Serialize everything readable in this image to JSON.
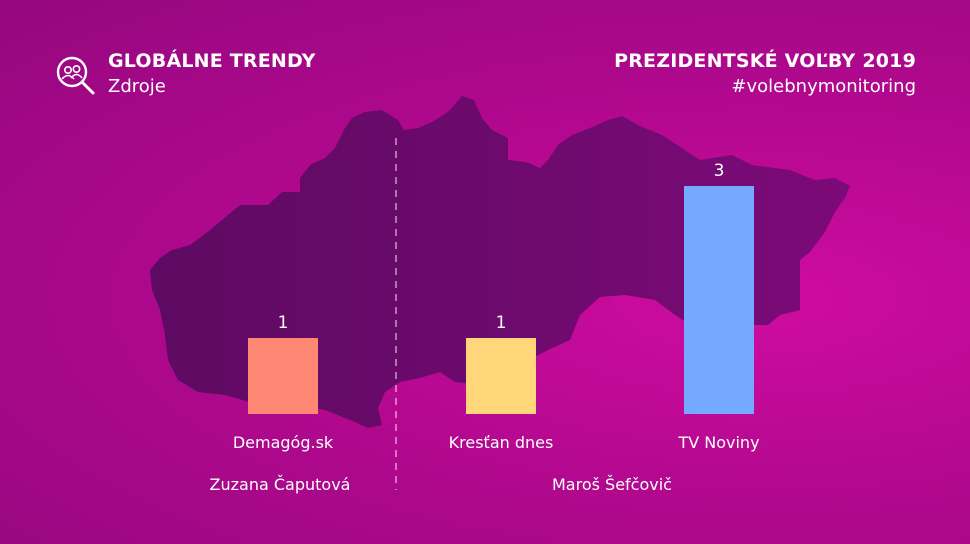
{
  "header": {
    "title": "GLOBÁLNE TRENDY",
    "subtitle": "Zdroje",
    "right_title": "PREZIDENTSKÉ VOĽBY 2019",
    "right_subtitle": "#volebnymonitoring",
    "icon": "magnifier-people-icon"
  },
  "colors": {
    "background": "#b3088f",
    "map": "#6e0a6e",
    "text": "#ffffff"
  },
  "chart_data": {
    "type": "bar",
    "categories": [
      "Demagóg.sk",
      "Kresťan dnes",
      "TV Noviny"
    ],
    "values": [
      1,
      1,
      3
    ],
    "colors": [
      "#ff8874",
      "#ffd67a",
      "#75a8ff"
    ],
    "groups": [
      {
        "label": "Zuzana Čaputová",
        "categories": [
          "Demagóg.sk"
        ]
      },
      {
        "label": "Maroš Šefčovič",
        "categories": [
          "Kresťan dnes",
          "TV Noviny"
        ]
      }
    ],
    "ylim": [
      0,
      3
    ],
    "grid": false
  }
}
